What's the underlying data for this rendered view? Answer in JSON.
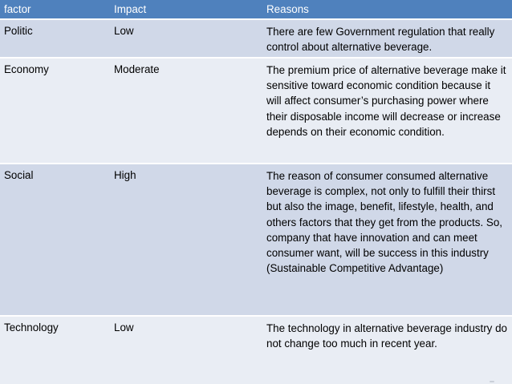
{
  "table": {
    "headers": {
      "factor": "factor",
      "impact": "Impact",
      "reasons": "Reasons"
    },
    "rows": [
      {
        "factor": "Politic",
        "impact": "Low",
        "reasons": "There are few Government regulation that really control about alternative beverage."
      },
      {
        "factor": "Economy",
        "impact": "Moderate",
        "reasons": "The premium price of alternative beverage make it sensitive toward economic condition because it will affect consumer’s purchasing power where their disposable income will decrease or increase depends on their economic condition."
      },
      {
        "factor": "Social",
        "impact": "High",
        "reasons": "The reason of consumer consumed alternative beverage is complex, not only to fulfill their thirst but also the image, benefit, lifestyle, health, and others factors that they get from the products. So, company that have innovation and can meet consumer want, will be success in this industry (Sustainable Competitive Advantage)"
      },
      {
        "factor": "Technology",
        "impact": "Low",
        "reasons": "The technology in alternative beverage industry do not change too much in recent year."
      }
    ]
  },
  "colors": {
    "header_bg": "#4f81bd",
    "row_band_dark": "#d0d8e8",
    "row_band_light": "#e9edf4"
  }
}
